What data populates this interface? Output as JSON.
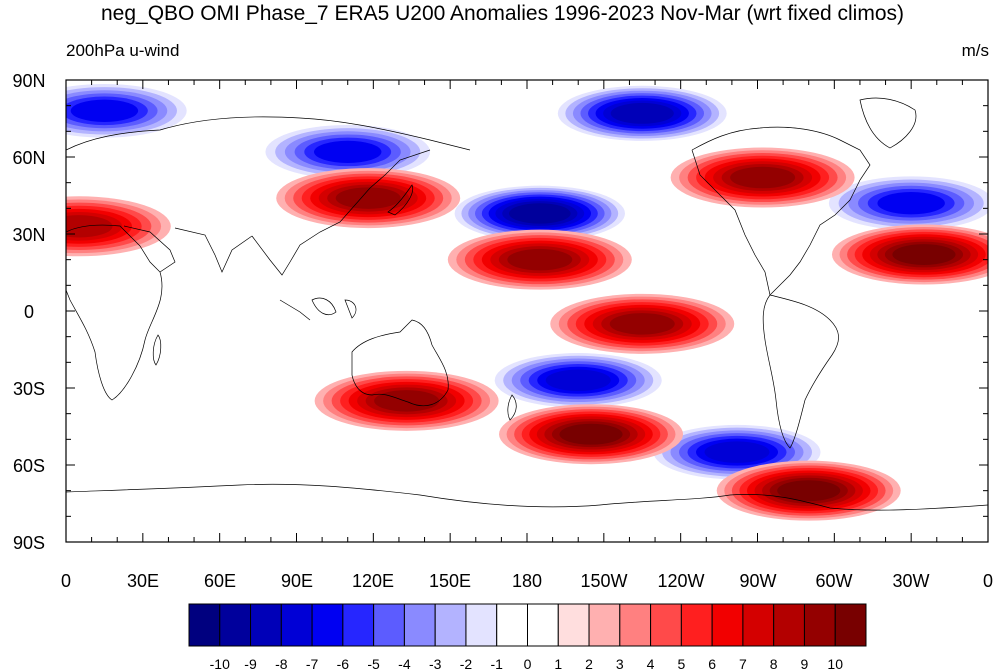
{
  "figure": {
    "title": "neg_QBO OMI Phase_7 ERA5 U200 Anomalies 1996-2023 Nov-Mar (wrt fixed climos)",
    "left_label": "200hPa u-wind",
    "right_label": "m/s"
  },
  "map": {
    "projection": "cylindrical-equidistant",
    "lon_range": [
      0,
      360
    ],
    "lat_range": [
      -90,
      90
    ],
    "y_ticks": [
      "90N",
      "60N",
      "30N",
      "0",
      "30S",
      "60S",
      "90S"
    ],
    "x_ticks": [
      "0",
      "30E",
      "60E",
      "90E",
      "120E",
      "150E",
      "180",
      "150W",
      "120W",
      "90W",
      "60W",
      "30W",
      "0"
    ],
    "coastlines": true,
    "field": "u-wind anomaly (m/s)",
    "anomaly_features": [
      {
        "sign": "negative",
        "lon": 110,
        "lat": 62,
        "value": -7
      },
      {
        "sign": "negative",
        "lon": 15,
        "lat": 78,
        "value": -7
      },
      {
        "sign": "negative",
        "lon": 225,
        "lat": 77,
        "value": -9
      },
      {
        "sign": "negative",
        "lon": 185,
        "lat": 38,
        "value": -10
      },
      {
        "sign": "negative",
        "lon": 330,
        "lat": 42,
        "value": -7
      },
      {
        "sign": "negative",
        "lon": 200,
        "lat": -27,
        "value": -8
      },
      {
        "sign": "negative",
        "lon": 262,
        "lat": -55,
        "value": -8
      },
      {
        "sign": "positive",
        "lon": 118,
        "lat": 44,
        "value": 8
      },
      {
        "sign": "positive",
        "lon": 5,
        "lat": 33,
        "value": 7
      },
      {
        "sign": "positive",
        "lon": 272,
        "lat": 52,
        "value": 8
      },
      {
        "sign": "positive",
        "lon": 185,
        "lat": 20,
        "value": 8
      },
      {
        "sign": "positive",
        "lon": 335,
        "lat": 22,
        "value": 9
      },
      {
        "sign": "positive",
        "lon": 225,
        "lat": -5,
        "value": 8
      },
      {
        "sign": "positive",
        "lon": 133,
        "lat": -35,
        "value": 8
      },
      {
        "sign": "positive",
        "lon": 205,
        "lat": -48,
        "value": 9
      },
      {
        "sign": "positive",
        "lon": 290,
        "lat": -70,
        "value": 9
      }
    ]
  },
  "colorbar": {
    "labels": [
      "-10",
      "-9",
      "-8",
      "-7",
      "-6",
      "-5",
      "-4",
      "-3",
      "-2",
      "-1",
      "0",
      "1",
      "2",
      "3",
      "4",
      "5",
      "6",
      "7",
      "8",
      "9",
      "10"
    ],
    "colors": [
      "#00007f",
      "#00009c",
      "#0000b8",
      "#0000d6",
      "#0000f2",
      "#2626ff",
      "#5c5cff",
      "#8a8aff",
      "#b3b3ff",
      "#e3e3ff",
      "#ffffff",
      "#ffffff",
      "#ffdede",
      "#ffb0b0",
      "#ff8080",
      "#ff4a4a",
      "#ff1f1f",
      "#f20000",
      "#d40000",
      "#b30000",
      "#940000",
      "#780000"
    ]
  }
}
